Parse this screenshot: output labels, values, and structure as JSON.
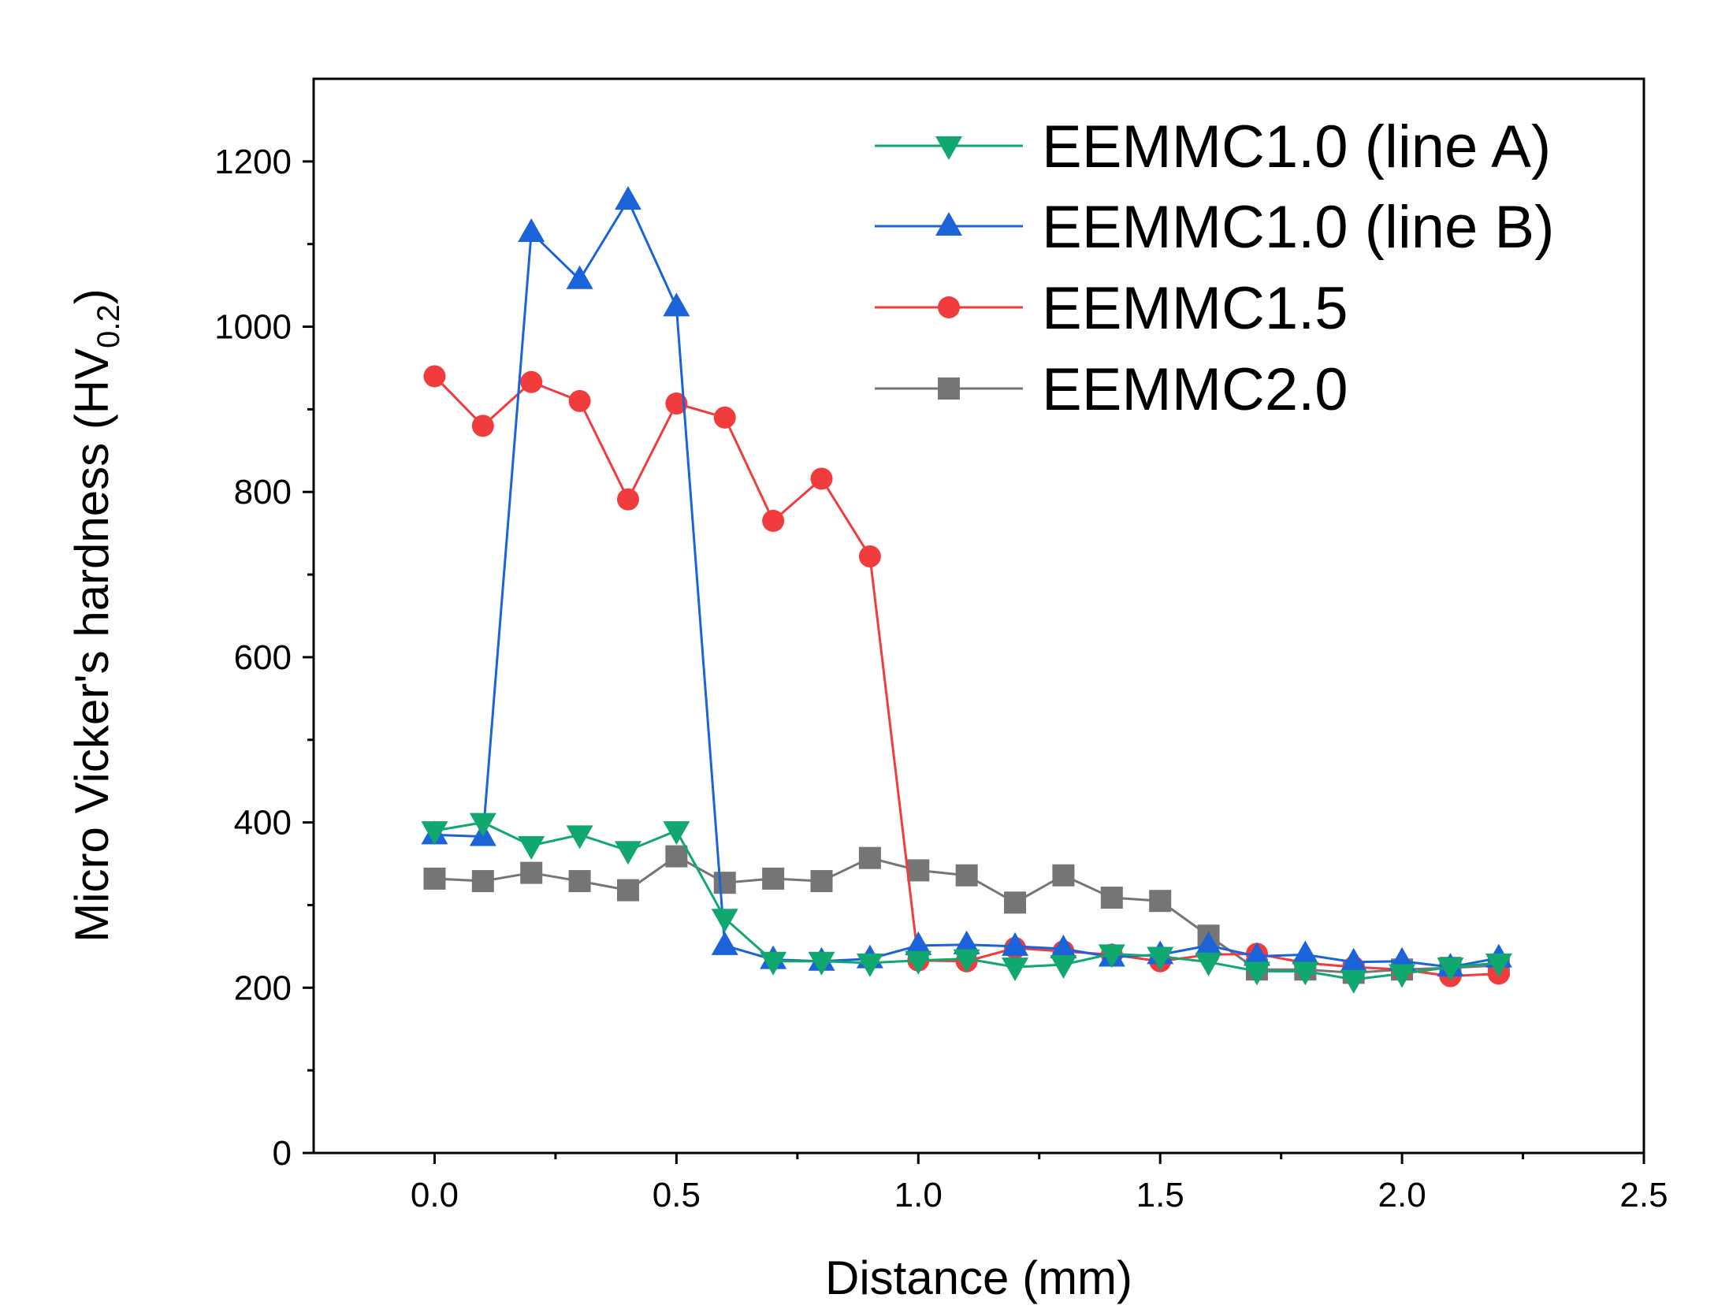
{
  "chart_data": {
    "type": "line",
    "xlabel": "Distance (mm)",
    "ylabel": {
      "main": "Micro Vicker's hardness (HV",
      "subscript": "0.2",
      "close": ")"
    },
    "xlim": [
      -0.25,
      2.5
    ],
    "ylim": [
      0,
      1300
    ],
    "x_ticks": [
      "0.0",
      "0.5",
      "1.0",
      "1.5",
      "2.0",
      "2.5"
    ],
    "y_ticks": [
      "0",
      "200",
      "400",
      "600",
      "800",
      "1000",
      "1200"
    ],
    "grid": false,
    "legend_position": "top-right",
    "x": [
      0.0,
      0.1,
      0.2,
      0.3,
      0.4,
      0.5,
      0.6,
      0.7,
      0.8,
      0.9,
      1.0,
      1.1,
      1.2,
      1.3,
      1.4,
      1.5,
      1.6,
      1.7,
      1.8,
      1.9,
      2.0,
      2.1,
      2.2
    ],
    "series": [
      {
        "name": "EEMMC2.0",
        "color": "#757575",
        "marker": "square",
        "values": [
          332,
          329,
          339,
          329,
          318,
          359,
          327,
          332,
          329,
          357,
          342,
          336,
          303,
          336,
          309,
          305,
          263,
          222,
          222,
          218,
          222,
          224,
          227
        ]
      },
      {
        "name": "EEMMC1.5",
        "color": "#f03c3c",
        "marker": "circle",
        "values": [
          940,
          880,
          933,
          910,
          791,
          907,
          890,
          765,
          816,
          722,
          233,
          232,
          248,
          244,
          240,
          232,
          240,
          241,
          230,
          225,
          222,
          214,
          217
        ]
      },
      {
        "name": "EEMMC1.0 (line B)",
        "color": "#1a63d8",
        "marker": "triangle-up",
        "values": [
          385,
          383,
          1114,
          1057,
          1153,
          1024,
          251,
          234,
          232,
          235,
          251,
          252,
          250,
          247,
          237,
          240,
          251,
          238,
          240,
          231,
          232,
          225,
          236
        ]
      },
      {
        "name": "EEMMC1.0 (line A)",
        "color": "#10a86e",
        "marker": "triangle-down",
        "values": [
          390,
          400,
          372,
          385,
          366,
          390,
          284,
          232,
          232,
          230,
          233,
          235,
          225,
          228,
          241,
          238,
          231,
          220,
          220,
          210,
          217,
          225,
          230
        ]
      }
    ],
    "legend_order": [
      "EEMMC1.0 (line A)",
      "EEMMC1.0 (line B)",
      "EEMMC1.5",
      "EEMMC2.0"
    ]
  }
}
